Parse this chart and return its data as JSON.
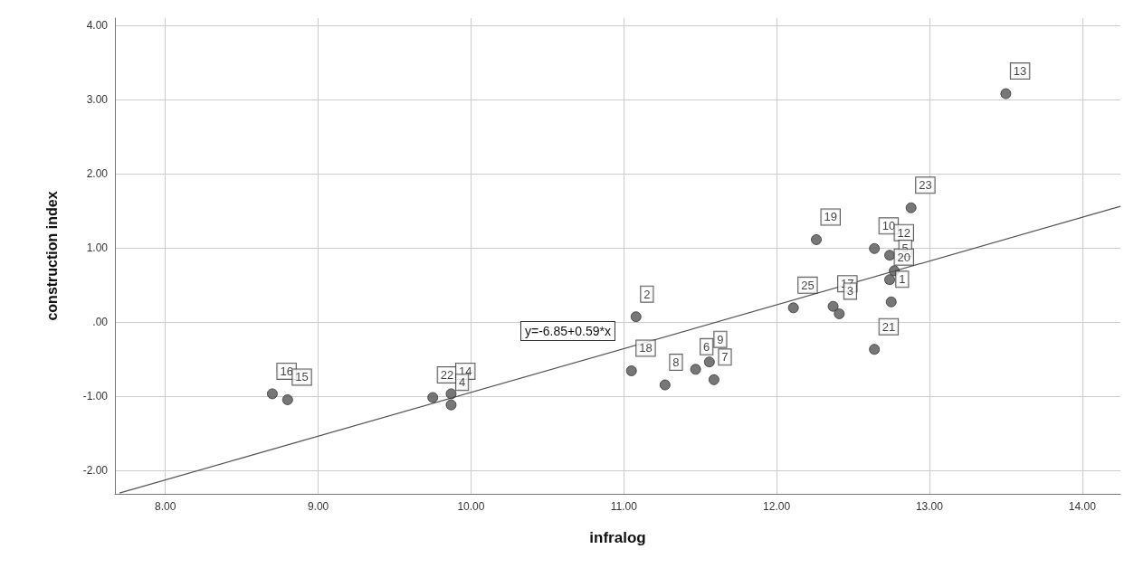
{
  "chart_data": {
    "type": "scatter",
    "xlabel": "infralog",
    "ylabel": "construction index",
    "xlim": [
      7.67,
      14.25
    ],
    "ylim": [
      -2.32,
      4.1
    ],
    "xticks": [
      {
        "value": 8,
        "label": "8.00"
      },
      {
        "value": 9,
        "label": "9.00"
      },
      {
        "value": 10,
        "label": "10.00"
      },
      {
        "value": 11,
        "label": "11.00"
      },
      {
        "value": 12,
        "label": "12.00"
      },
      {
        "value": 13,
        "label": "13.00"
      },
      {
        "value": 14,
        "label": "14.00"
      }
    ],
    "yticks": [
      {
        "value": -2,
        "label": "-2.00"
      },
      {
        "value": -1,
        "label": "-1.00"
      },
      {
        "value": 0,
        "label": ".00"
      },
      {
        "value": 1,
        "label": "1.00"
      },
      {
        "value": 2,
        "label": "2.00"
      },
      {
        "value": 3,
        "label": "3.00"
      },
      {
        "value": 4,
        "label": "4.00"
      }
    ],
    "grid": true,
    "marker": "circle",
    "series": [
      {
        "color": "#555555",
        "x": [
          8.7,
          8.8,
          9.75,
          9.87,
          9.87,
          11.08,
          11.05,
          11.27,
          11.56,
          11.47,
          11.59,
          12.26,
          12.88,
          12.64,
          12.74,
          12.77,
          12.74,
          12.11,
          12.37,
          12.41,
          12.75,
          12.64,
          13.5
        ],
        "values": [
          -0.97,
          -1.05,
          -1.02,
          -0.97,
          -1.12,
          0.07,
          -0.66,
          -0.85,
          -0.54,
          -0.64,
          -0.78,
          1.11,
          1.54,
          0.99,
          0.9,
          0.69,
          0.57,
          0.19,
          0.21,
          0.11,
          0.27,
          -0.37,
          3.08
        ]
      },
      {
        "type": "line",
        "color": "#555555",
        "x": [
          7.7,
          14.25
        ],
        "values": [
          -2.31,
          1.56
        ],
        "marker": "none",
        "line_style": "solid"
      }
    ],
    "annotations": [
      "y=-6.85+0.59*x",
      {
        "text": "16",
        "x": 8.7,
        "y": -0.97
      },
      {
        "text": "15",
        "x": 8.8,
        "y": -1.05
      },
      {
        "text": "22",
        "x": 9.75,
        "y": -1.02
      },
      {
        "text": "14",
        "x": 9.87,
        "y": -0.97
      },
      {
        "text": "4",
        "x": 9.87,
        "y": -1.12
      },
      {
        "text": "2",
        "x": 11.08,
        "y": 0.07
      },
      {
        "text": "18",
        "x": 11.05,
        "y": -0.66
      },
      {
        "text": "8",
        "x": 11.27,
        "y": -0.85
      },
      {
        "text": "9",
        "x": 11.56,
        "y": -0.54
      },
      {
        "text": "6",
        "x": 11.47,
        "y": -0.64
      },
      {
        "text": "7",
        "x": 11.59,
        "y": -0.78
      },
      {
        "text": "19",
        "x": 12.26,
        "y": 1.11
      },
      {
        "text": "23",
        "x": 12.88,
        "y": 1.54
      },
      {
        "text": "10",
        "x": 12.64,
        "y": 0.99
      },
      {
        "text": "12",
        "x": 12.74,
        "y": 0.9
      },
      {
        "text": "5",
        "x": 12.77,
        "y": 0.69
      },
      {
        "text": "20",
        "x": 12.74,
        "y": 0.57
      },
      {
        "text": "25",
        "x": 12.11,
        "y": 0.19
      },
      {
        "text": "17",
        "x": 12.37,
        "y": 0.21
      },
      {
        "text": "3",
        "x": 12.41,
        "y": 0.11
      },
      {
        "text": "1",
        "x": 12.75,
        "y": 0.27
      },
      {
        "text": "21",
        "x": 12.64,
        "y": -0.37
      },
      {
        "text": "13",
        "x": 13.5,
        "y": 3.08
      }
    ]
  }
}
